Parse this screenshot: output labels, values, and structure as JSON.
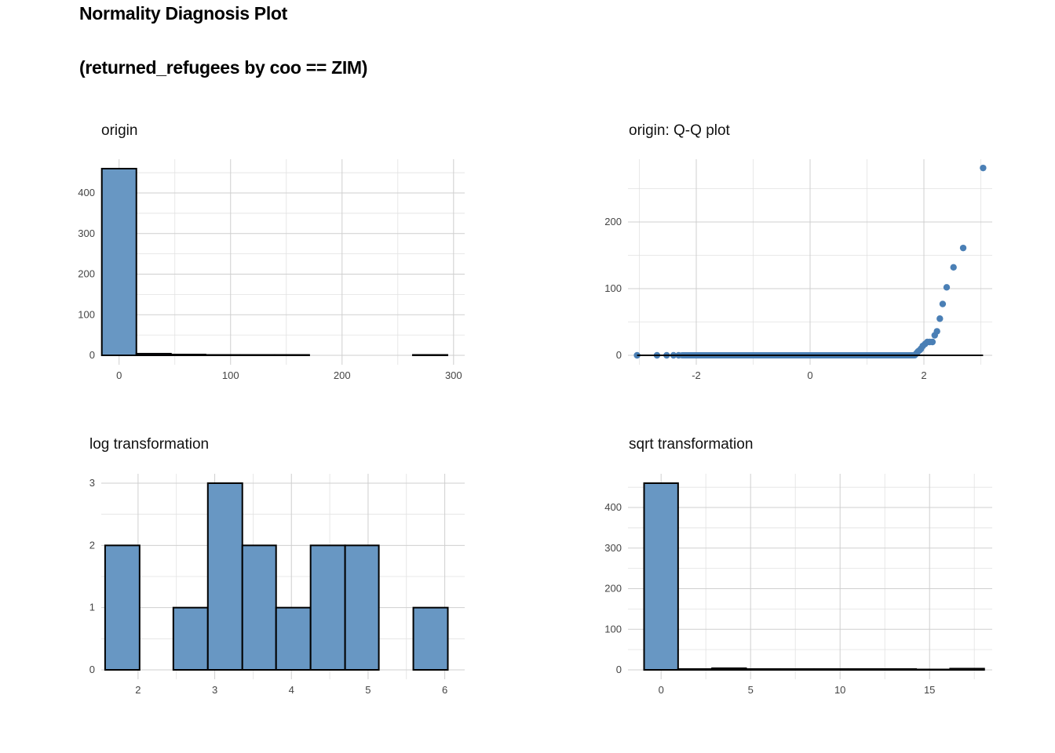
{
  "header": {
    "title": "Normality Diagnosis Plot",
    "subtitle": "(returned_refugees by coo == ZIM)"
  },
  "colors": {
    "bar_fill": "#6897c3",
    "bar_stroke": "#000000",
    "point": "#4a7fb5",
    "grid": "#cfcfcf"
  },
  "chart_data": [
    {
      "id": "origin",
      "type": "bar",
      "title": "origin",
      "xlabel": "",
      "ylabel": "",
      "xlim": [
        -16,
        310
      ],
      "ylim": [
        0,
        460
      ],
      "xticks": [
        0,
        100,
        200,
        300
      ],
      "xticklabels": [
        "0",
        "100",
        "200",
        "300"
      ],
      "yticks": [
        0,
        100,
        200,
        300,
        400
      ],
      "yticklabels": [
        "0",
        "100",
        "200",
        "300",
        "400"
      ],
      "grid": true,
      "bins": [
        {
          "x0": -15.5,
          "x1": 15.5,
          "count": 460
        },
        {
          "x0": 15.5,
          "x1": 46.5,
          "count": 4
        },
        {
          "x0": 46.5,
          "x1": 77.5,
          "count": 2
        },
        {
          "x0": 77.5,
          "x1": 108.5,
          "count": 1
        },
        {
          "x0": 108.5,
          "x1": 139.5,
          "count": 1
        },
        {
          "x0": 139.5,
          "x1": 170.5,
          "count": 1
        },
        {
          "x0": 170.5,
          "x1": 201.5,
          "count": 0
        },
        {
          "x0": 201.5,
          "x1": 232.5,
          "count": 0
        },
        {
          "x0": 232.5,
          "x1": 263.5,
          "count": 0
        },
        {
          "x0": 263.5,
          "x1": 294.5,
          "count": 1
        }
      ]
    },
    {
      "id": "qq",
      "type": "scatter",
      "title": "origin: Q-Q plot",
      "xlabel": "",
      "ylabel": "",
      "xlim": [
        -3.2,
        3.2
      ],
      "ylim": [
        0,
        280
      ],
      "xticks": [
        -2,
        0,
        2
      ],
      "xticklabels": [
        "-2",
        "0",
        "2"
      ],
      "yticks": [
        0,
        100,
        200
      ],
      "yticklabels": [
        "0",
        "100",
        "200"
      ],
      "grid": true,
      "zero_run": {
        "x_start": -2.25,
        "x_end": 1.84,
        "y": 0
      },
      "points": [
        [
          -3.04,
          0
        ],
        [
          -2.69,
          0
        ],
        [
          -2.52,
          0
        ],
        [
          -2.4,
          0
        ],
        [
          -2.31,
          0
        ],
        [
          1.86,
          2
        ],
        [
          1.88,
          4
        ],
        [
          1.9,
          6
        ],
        [
          1.93,
          8
        ],
        [
          1.95,
          10
        ],
        [
          1.98,
          14
        ],
        [
          2.02,
          17
        ],
        [
          2.06,
          20
        ],
        [
          2.1,
          20
        ],
        [
          2.15,
          20
        ],
        [
          2.19,
          30
        ],
        [
          2.23,
          36
        ],
        [
          2.28,
          55
        ],
        [
          2.33,
          77
        ],
        [
          2.4,
          102
        ],
        [
          2.52,
          132
        ],
        [
          2.69,
          161
        ],
        [
          3.04,
          281
        ]
      ]
    },
    {
      "id": "log",
      "type": "bar",
      "title": "log transformation",
      "xlabel": "",
      "ylabel": "",
      "xlim": [
        1.52,
        6.26
      ],
      "ylim": [
        0,
        3
      ],
      "xticks": [
        2,
        3,
        4,
        5,
        6
      ],
      "xticklabels": [
        "2",
        "3",
        "4",
        "5",
        "6"
      ],
      "yticks": [
        0,
        1,
        2,
        3
      ],
      "yticklabels": [
        "0",
        "1",
        "2",
        "3"
      ],
      "grid": true,
      "bins": [
        {
          "x0": 1.57,
          "x1": 2.02,
          "count": 2
        },
        {
          "x0": 2.02,
          "x1": 2.46,
          "count": 0
        },
        {
          "x0": 2.46,
          "x1": 2.91,
          "count": 1
        },
        {
          "x0": 2.91,
          "x1": 3.36,
          "count": 3
        },
        {
          "x0": 3.36,
          "x1": 3.8,
          "count": 2
        },
        {
          "x0": 3.8,
          "x1": 4.25,
          "count": 1
        },
        {
          "x0": 4.25,
          "x1": 4.7,
          "count": 2
        },
        {
          "x0": 4.7,
          "x1": 5.14,
          "count": 2
        },
        {
          "x0": 5.14,
          "x1": 5.59,
          "count": 0
        },
        {
          "x0": 5.59,
          "x1": 6.04,
          "count": 1
        }
      ]
    },
    {
      "id": "sqrt",
      "type": "bar",
      "title": "sqrt transformation",
      "xlabel": "",
      "ylabel": "",
      "xlim": [
        -1.85,
        18.5
      ],
      "ylim": [
        0,
        460
      ],
      "xticks": [
        0,
        5,
        10,
        15
      ],
      "xticklabels": [
        "0",
        "5",
        "10",
        "15"
      ],
      "yticks": [
        0,
        100,
        200,
        300,
        400
      ],
      "yticklabels": [
        "0",
        "100",
        "200",
        "300",
        "400"
      ],
      "grid": true,
      "bins": [
        {
          "x0": -0.95,
          "x1": 0.95,
          "count": 460
        },
        {
          "x0": 0.95,
          "x1": 2.85,
          "count": 2
        },
        {
          "x0": 2.85,
          "x1": 4.75,
          "count": 4
        },
        {
          "x0": 4.75,
          "x1": 6.65,
          "count": 2
        },
        {
          "x0": 6.65,
          "x1": 8.55,
          "count": 2
        },
        {
          "x0": 8.55,
          "x1": 10.45,
          "count": 2
        },
        {
          "x0": 10.45,
          "x1": 12.35,
          "count": 2
        },
        {
          "x0": 12.35,
          "x1": 14.25,
          "count": 2
        },
        {
          "x0": 14.25,
          "x1": 16.15,
          "count": 1
        },
        {
          "x0": 16.15,
          "x1": 18.05,
          "count": 3
        }
      ]
    }
  ]
}
